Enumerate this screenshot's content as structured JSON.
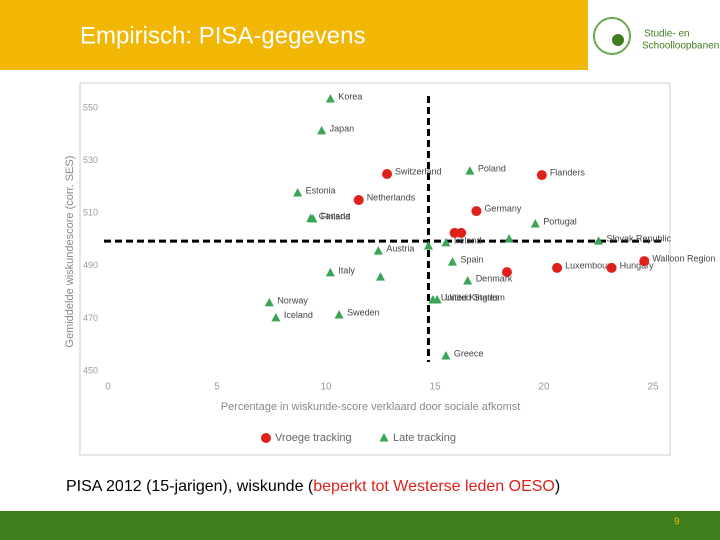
{
  "header": {
    "title": "Empirisch: PISA-gegevens",
    "logo_lines": [
      "Studie- en",
      "Schoolloopbanen"
    ]
  },
  "chart_data": {
    "type": "scatter",
    "x_label": "Percentage in wiskunde-score verklaard door sociale afkomst",
    "y_label": "Gemiddelde wiskundescore (corr. SES)",
    "xlim": [
      0,
      25
    ],
    "ylim": [
      450,
      556
    ],
    "xticks": [
      0,
      5,
      10,
      15,
      20,
      25
    ],
    "yticks": [
      450,
      470,
      490,
      510,
      530,
      550
    ],
    "reference_lines": {
      "x": 14.7,
      "y": 499.4
    },
    "legend": "bottom",
    "series": [
      {
        "name": "Vroege tracking",
        "color": "#e0201b",
        "marker": "circle",
        "x": [
          12.8,
          19.9,
          11.5,
          16.9,
          15.9,
          16.2,
          18.3,
          20.6,
          23.1,
          24.6
        ],
        "values": [
          524.9,
          524.5,
          515,
          510.8,
          502.5,
          502.5,
          487.6,
          489.2,
          489.2,
          491.8
        ],
        "labels": [
          "Switzerland",
          "Flanders",
          "Netherlands",
          "Germany",
          null,
          null,
          null,
          "Luxembourg",
          "Hungary",
          "Walloon Region"
        ]
      },
      {
        "name": "Late tracking",
        "color": "#3aa655",
        "marker": "triangle",
        "x": [
          10.2,
          9.8,
          16.6,
          8.7,
          9.4,
          9.3,
          19.6,
          15.8,
          10.2,
          7.4,
          7.7,
          10.6,
          15.5,
          16.5,
          14.9,
          15.1,
          12.5,
          12.4,
          15.5,
          14.7,
          18.4,
          22.5
        ],
        "values": [
          553.4,
          541.3,
          526,
          517.7,
          507.8,
          508,
          505.9,
          491.4,
          487.3,
          475.9,
          470.2,
          471.3,
          455.7,
          484.2,
          477,
          477,
          485.7,
          495.6,
          498.7,
          497.5,
          500.2,
          499.4
        ],
        "labels": [
          "Korea",
          "Japan",
          "Poland",
          "Estonia",
          "Finland",
          "Canada",
          "Portugal",
          "Spain",
          "Italy",
          "Norway",
          "Iceland",
          "Sweden",
          "Greece",
          "Denmark",
          "United Kingdom",
          "United States",
          null,
          "Austria",
          "Ireland",
          null,
          null,
          "Slovak Republic"
        ]
      }
    ]
  },
  "caption_parts": [
    "PISA 2012 (15-jarigen), wiskunde (",
    "beperkt tot Westerse leden OESO",
    ")"
  ],
  "footer": {
    "page_number": "9"
  }
}
